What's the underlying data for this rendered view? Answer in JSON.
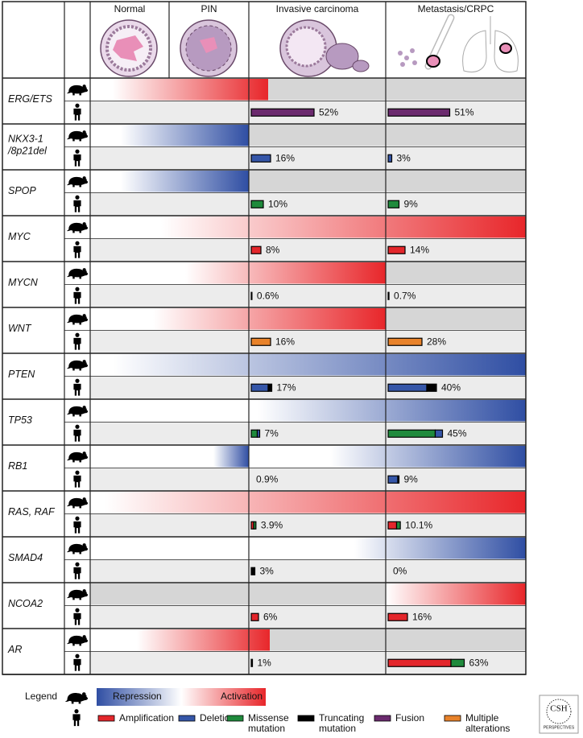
{
  "header": {
    "columns": [
      "Normal",
      "PIN",
      "Invasive carcinoma",
      "Metastasis/CRPC"
    ]
  },
  "genes": [
    {
      "name": [
        "ERG/ETS"
      ],
      "invasive": {
        "label": "52%",
        "segments": [
          {
            "value": 52,
            "color": "#6b2a6e"
          }
        ]
      },
      "metastasis": {
        "label": "51%",
        "segments": [
          {
            "value": 51,
            "color": "#6b2a6e"
          }
        ]
      }
    },
    {
      "name": [
        "NKX3-1",
        "/8p21del"
      ],
      "invasive": {
        "label": "16%",
        "segments": [
          {
            "value": 16,
            "color": "#3556a8"
          }
        ]
      },
      "metastasis": {
        "label": "3%",
        "segments": [
          {
            "value": 3,
            "color": "#3556a8"
          }
        ]
      }
    },
    {
      "name": [
        "SPOP"
      ],
      "invasive": {
        "label": "10%",
        "segments": [
          {
            "value": 10,
            "color": "#1f8a3c"
          }
        ]
      },
      "metastasis": {
        "label": "9%",
        "segments": [
          {
            "value": 9,
            "color": "#1f8a3c"
          }
        ]
      }
    },
    {
      "name": [
        "MYC"
      ],
      "invasive": {
        "label": "8%",
        "segments": [
          {
            "value": 8,
            "color": "#e3262b"
          }
        ]
      },
      "metastasis": {
        "label": "14%",
        "segments": [
          {
            "value": 14,
            "color": "#e3262b"
          }
        ]
      }
    },
    {
      "name": [
        "MYCN"
      ],
      "invasive": {
        "label": "0.6%",
        "segments": [
          {
            "value": 0.6,
            "color": "#e3262b"
          }
        ]
      },
      "metastasis": {
        "label": "0.7%",
        "segments": [
          {
            "value": 0.7,
            "color": "#e3262b"
          }
        ]
      }
    },
    {
      "name": [
        "WNT"
      ],
      "invasive": {
        "label": "16%",
        "segments": [
          {
            "value": 16,
            "color": "#e8822a"
          }
        ]
      },
      "metastasis": {
        "label": "28%",
        "segments": [
          {
            "value": 28,
            "color": "#e8822a"
          }
        ]
      }
    },
    {
      "name": [
        "PTEN"
      ],
      "invasive": {
        "label": "17%",
        "segments": [
          {
            "value": 14,
            "color": "#3556a8"
          },
          {
            "value": 3,
            "color": "#000000"
          }
        ]
      },
      "metastasis": {
        "label": "40%",
        "segments": [
          {
            "value": 32,
            "color": "#3556a8"
          },
          {
            "value": 8,
            "color": "#000000"
          }
        ]
      }
    },
    {
      "name": [
        "TP53"
      ],
      "invasive": {
        "label": "7%",
        "segments": [
          {
            "value": 5,
            "color": "#1f8a3c"
          },
          {
            "value": 2,
            "color": "#3556a8"
          }
        ]
      },
      "metastasis": {
        "label": "45%",
        "segments": [
          {
            "value": 39,
            "color": "#1f8a3c"
          },
          {
            "value": 6,
            "color": "#3556a8"
          }
        ]
      }
    },
    {
      "name": [
        "RB1"
      ],
      "invasive": {
        "label": "0.9%",
        "segments": []
      },
      "metastasis": {
        "label": "9%",
        "segments": [
          {
            "value": 8,
            "color": "#3556a8"
          },
          {
            "value": 1,
            "color": "#000000"
          }
        ]
      }
    },
    {
      "name": [
        "RAS, RAF"
      ],
      "invasive": {
        "label": "3.9%",
        "segments": [
          {
            "value": 2,
            "color": "#e3262b"
          },
          {
            "value": 1.9,
            "color": "#1f8a3c"
          }
        ]
      },
      "metastasis": {
        "label": "10.1%",
        "segments": [
          {
            "value": 7,
            "color": "#e3262b"
          },
          {
            "value": 3.1,
            "color": "#1f8a3c"
          }
        ]
      }
    },
    {
      "name": [
        "SMAD4"
      ],
      "invasive": {
        "label": "3%",
        "segments": [
          {
            "value": 3,
            "color": "#000000"
          }
        ]
      },
      "metastasis": {
        "label": "0%",
        "segments": []
      }
    },
    {
      "name": [
        "NCOA2"
      ],
      "invasive": {
        "label": "6%",
        "segments": [
          {
            "value": 6,
            "color": "#e3262b"
          }
        ]
      },
      "metastasis": {
        "label": "16%",
        "segments": [
          {
            "value": 16,
            "color": "#e3262b"
          }
        ]
      }
    },
    {
      "name": [
        "AR"
      ],
      "invasive": {
        "label": "1%",
        "segments": [
          {
            "value": 1,
            "color": "#000000"
          }
        ]
      },
      "metastasis": {
        "label": "63%",
        "segments": [
          {
            "value": 52,
            "color": "#e3262b"
          },
          {
            "value": 11,
            "color": "#1f8a3c"
          }
        ]
      }
    }
  ],
  "legend": {
    "title": "Legend",
    "repression": "Repression",
    "activation": "Activation",
    "types": [
      {
        "label": [
          "Amplification"
        ],
        "color": "#e3262b"
      },
      {
        "label": [
          "Deletion"
        ],
        "color": "#3556a8"
      },
      {
        "label": [
          "Missense",
          "mutation"
        ],
        "color": "#1f8a3c"
      },
      {
        "label": [
          "Truncating",
          "mutation"
        ],
        "color": "#000000"
      },
      {
        "label": [
          "Fusion"
        ],
        "color": "#6b2a6e"
      },
      {
        "label": [
          "Multiple",
          "alterations"
        ],
        "color": "#e8822a"
      }
    ]
  },
  "logo": [
    "CSH",
    "PERSPECTIVES"
  ]
}
